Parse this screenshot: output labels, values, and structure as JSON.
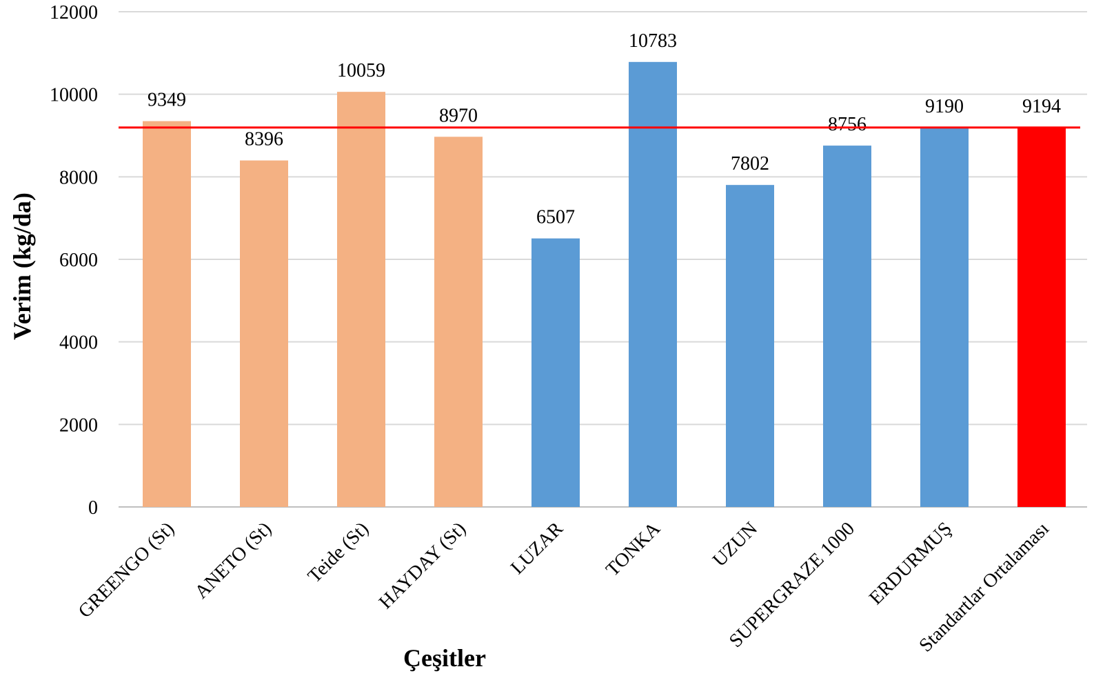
{
  "chart_data": {
    "type": "bar",
    "categories": [
      "GREENGO (St)",
      "ANETO (St)",
      "Teide (St)",
      "HAYDAY (St)",
      "LUZAR",
      "TONKA",
      "UZUN",
      "SUPERGRAZE 1000",
      "ERDURMUŞ",
      "Standartlar Ortalaması"
    ],
    "values": [
      9349,
      8396,
      10059,
      8970,
      6507,
      10783,
      7802,
      8756,
      9190,
      9194
    ],
    "data_labels": [
      "9349",
      "8396",
      "10059",
      "8970",
      "6507",
      "10783",
      "7802",
      "8756",
      "9190",
      "9194"
    ],
    "bar_colors": [
      "#f4b183",
      "#f4b183",
      "#f4b183",
      "#f4b183",
      "#5b9bd5",
      "#5b9bd5",
      "#5b9bd5",
      "#5b9bd5",
      "#5b9bd5",
      "#ff0000"
    ],
    "reference_line": {
      "value": 9194,
      "color": "#ff0000"
    },
    "xlabel": "Çeşitler",
    "ylabel": "Verim  (kg/da)",
    "ylim": [
      0,
      12000
    ],
    "yticks": [
      0,
      2000,
      4000,
      6000,
      8000,
      10000,
      12000
    ],
    "ytick_labels": [
      "0",
      "2000",
      "4000",
      "6000",
      "8000",
      "10000",
      "12000"
    ],
    "grid": true,
    "legend": "none"
  }
}
